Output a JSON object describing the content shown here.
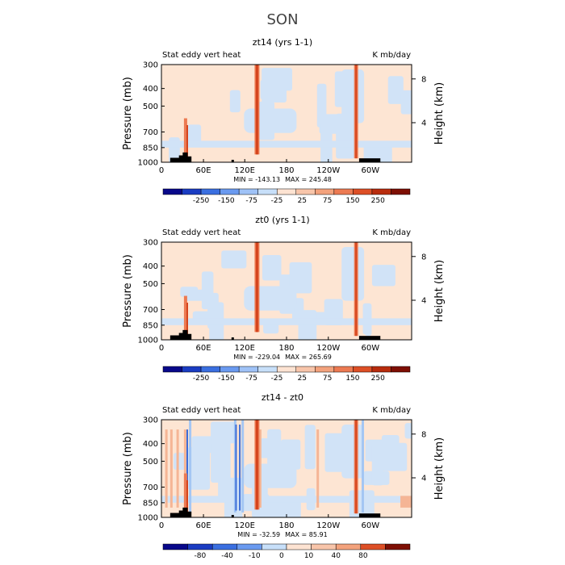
{
  "figure": {
    "title": "SON"
  },
  "chart_data": [
    {
      "type": "heatmap",
      "title": "zt14 (yrs 1-1)",
      "left_label": "Stat eddy vert heat",
      "units": "K mb/day",
      "ylabel": "Pressure (mb)",
      "ylabel_right": "Height (km)",
      "yticks": [
        "300",
        "400",
        "500",
        "700",
        "850",
        "1000"
      ],
      "yticks_right": [
        "8",
        "4"
      ],
      "xticks": [
        "0",
        "60E",
        "120E",
        "180",
        "120W",
        "60W"
      ],
      "stats": {
        "min_label": "MIN = ",
        "min": "-143.13",
        "max_label": "MAX = ",
        "max": "245.48"
      },
      "colorbar": {
        "labels": [
          "-250",
          "-150",
          "-75",
          "-25",
          "25",
          "75",
          "150",
          "250"
        ]
      }
    },
    {
      "type": "heatmap",
      "title": "zt0 (yrs 1-1)",
      "left_label": "Stat eddy vert heat",
      "units": "K mb/day",
      "ylabel": "Pressure (mb)",
      "ylabel_right": "Height (km)",
      "yticks": [
        "300",
        "400",
        "500",
        "700",
        "850",
        "1000"
      ],
      "yticks_right": [
        "8",
        "4"
      ],
      "xticks": [
        "0",
        "60E",
        "120E",
        "180",
        "120W",
        "60W"
      ],
      "stats": {
        "min_label": "MIN = ",
        "min": "-229.04",
        "max_label": "MAX = ",
        "max": "265.69"
      },
      "colorbar": {
        "labels": [
          "-250",
          "-150",
          "-75",
          "-25",
          "25",
          "75",
          "150",
          "250"
        ]
      }
    },
    {
      "type": "heatmap",
      "title": "zt14 - zt0",
      "left_label": "Stat eddy vert heat",
      "units": "K mb/day",
      "ylabel": "Pressure (mb)",
      "ylabel_right": "Height (km)",
      "yticks": [
        "300",
        "400",
        "500",
        "700",
        "850",
        "1000"
      ],
      "yticks_right": [
        "8",
        "4"
      ],
      "xticks": [
        "0",
        "60E",
        "120E",
        "180",
        "120W",
        "60W"
      ],
      "stats": {
        "min_label": "MIN = ",
        "min": "-32.59",
        "max_label": "MAX = ",
        "max": "85.91"
      },
      "colorbar": {
        "labels": [
          "-80",
          "-40",
          "-10",
          "0",
          "10",
          "40",
          "80"
        ]
      }
    }
  ],
  "colors": {
    "scale": [
      "#08088a",
      "#1a3cc2",
      "#3a6fe0",
      "#6a9af0",
      "#9fc2f7",
      "#c7dff9",
      "#fde3d2",
      "#f8c5aa",
      "#f3a27c",
      "#ec7a52",
      "#dd4f26",
      "#b82c0d",
      "#7e0f04"
    ],
    "background": "#fde5d3",
    "weak_negative": "#d1e3f7",
    "mid_negative": "#a4c6f3",
    "strong_negative": "#3d6ed8",
    "strong_positive": "#d5441d",
    "mid_positive": "#ec7a52",
    "weak_positive": "#f5b595",
    "topography": "#000000"
  }
}
